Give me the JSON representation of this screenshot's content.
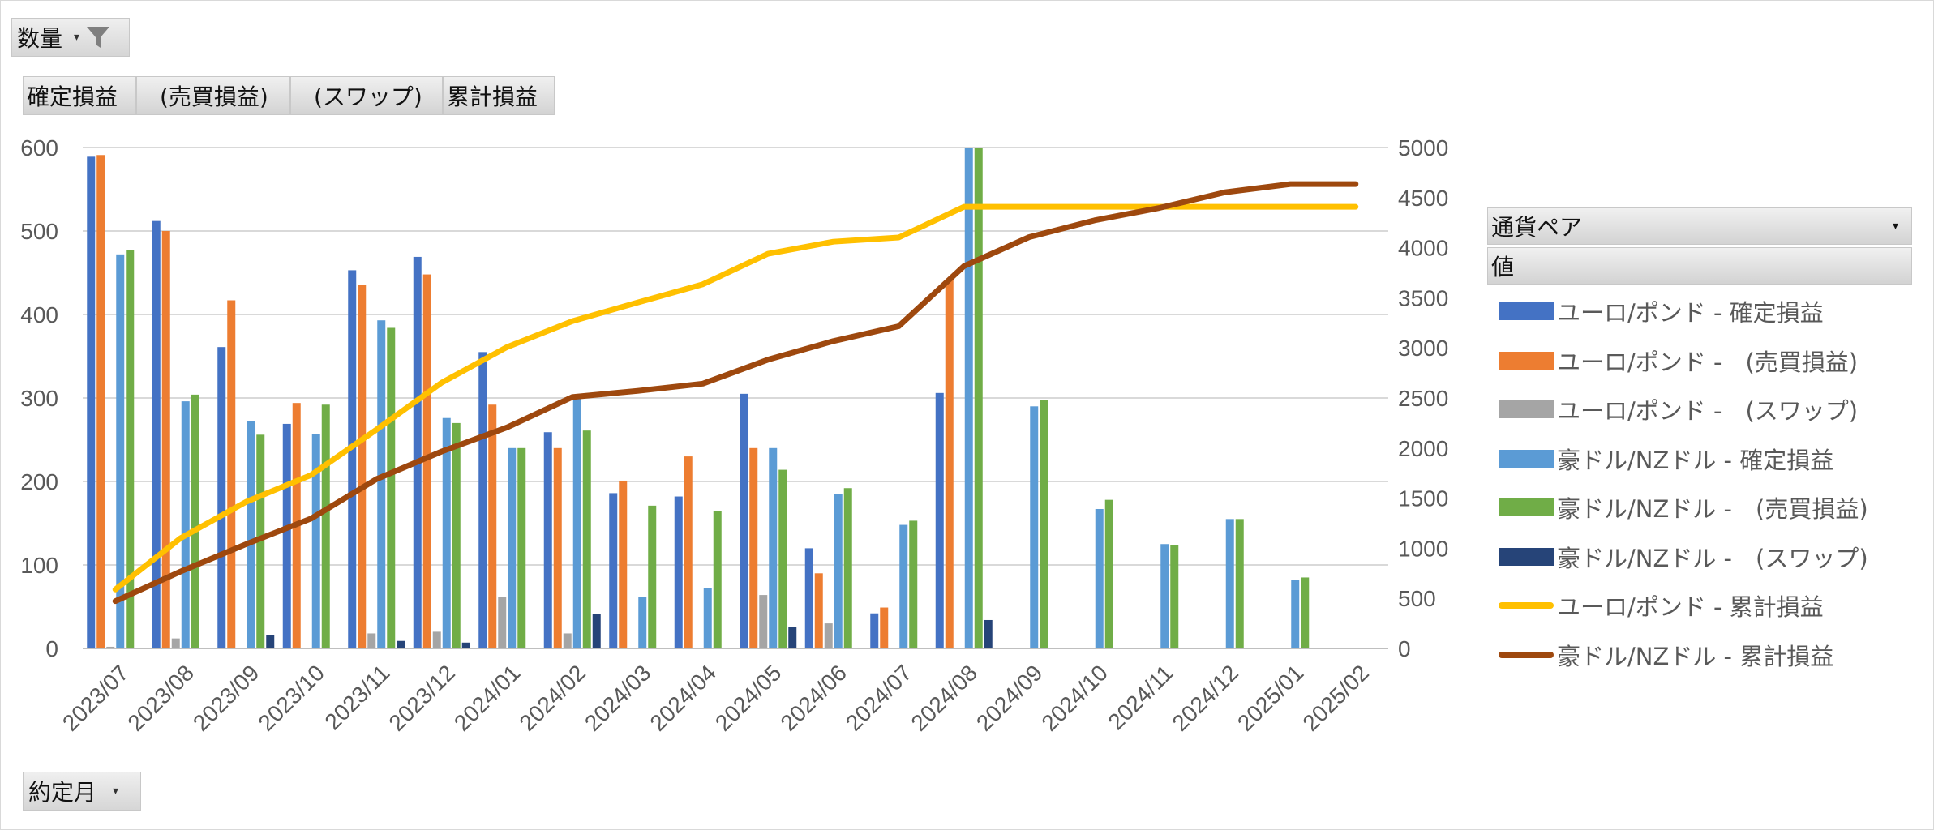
{
  "filters": {
    "value_field": "数量",
    "value_tabs": [
      "確定損益",
      "(売買損益)",
      "(スワップ)",
      "累計損益"
    ],
    "axis_field": "約定月",
    "legend_header": "通貨ペア",
    "legend_sub": "値"
  },
  "icons": {
    "filter": "funnel-icon",
    "dropdown": "chevron-down-icon"
  },
  "chart_data": {
    "type": "bar",
    "categories": [
      "2023/07",
      "2023/08",
      "2023/09",
      "2023/10",
      "2023/11",
      "2023/12",
      "2024/01",
      "2024/02",
      "2024/03",
      "2024/04",
      "2024/05",
      "2024/06",
      "2024/07",
      "2024/08",
      "2024/09",
      "2024/10",
      "2024/11",
      "2024/12",
      "2025/01",
      "2025/02"
    ],
    "y_left": {
      "ticks": [
        "0",
        "100",
        "200",
        "300",
        "400",
        "500",
        "600"
      ],
      "ylim": [
        0,
        600
      ]
    },
    "y_right": {
      "ticks": [
        "0",
        "500",
        "1000",
        "1500",
        "2000",
        "2500",
        "3000",
        "3500",
        "4000",
        "4500",
        "5000"
      ],
      "ylim": [
        0,
        5000
      ]
    },
    "grid": true,
    "legend_position": "right",
    "series": [
      {
        "name": "ユーロ/ポンド - 確定損益",
        "type": "bar",
        "axis": "left",
        "color": "#4472C4",
        "values": [
          589,
          512,
          361,
          269,
          453,
          469,
          355,
          259,
          186,
          182,
          305,
          120,
          42,
          306,
          null,
          null,
          null,
          null,
          null,
          null
        ]
      },
      {
        "name": "ユーロ/ポンド -　(売買損益)",
        "type": "bar",
        "axis": "left",
        "color": "#ED7D31",
        "values": [
          591,
          500,
          417,
          294,
          435,
          448,
          292,
          240,
          201,
          230,
          240,
          90,
          49,
          441,
          null,
          null,
          null,
          null,
          null,
          null
        ]
      },
      {
        "name": "ユーロ/ポンド -　(スワップ)",
        "type": "bar",
        "axis": "left",
        "color": "#A5A5A5",
        "values": [
          2,
          12,
          0,
          0,
          18,
          20,
          62,
          18,
          0,
          0,
          64,
          30,
          0,
          0,
          null,
          null,
          null,
          null,
          null,
          null
        ]
      },
      {
        "name": "豪ドル/NZドル - 確定損益",
        "type": "bar",
        "axis": "left",
        "color": "#5B9BD5",
        "values": [
          472,
          296,
          272,
          257,
          393,
          276,
          240,
          303,
          62,
          72,
          240,
          185,
          148,
          600,
          290,
          167,
          125,
          155,
          82,
          null
        ]
      },
      {
        "name": "豪ドル/NZドル -　(売買損益)",
        "type": "bar",
        "axis": "left",
        "color": "#70AD47",
        "values": [
          477,
          304,
          256,
          292,
          384,
          270,
          240,
          261,
          171,
          165,
          214,
          192,
          153,
          600,
          298,
          178,
          124,
          155,
          85,
          null
        ]
      },
      {
        "name": "豪ドル/NZドル -　(スワップ)",
        "type": "bar",
        "axis": "left",
        "color": "#264478",
        "values": [
          0,
          0,
          16,
          0,
          9,
          7,
          0,
          41,
          0,
          0,
          26,
          0,
          0,
          34,
          0,
          0,
          0,
          0,
          0,
          null
        ]
      },
      {
        "name": "ユーロ/ポンド - 累計損益",
        "type": "line",
        "axis": "right",
        "color": "#FFC000",
        "values": [
          589,
          1101,
          1462,
          1731,
          2184,
          2653,
          3008,
          3267,
          3453,
          3635,
          3940,
          4060,
          4102,
          4408,
          4408,
          4408,
          4408,
          4408,
          4408,
          4408
        ]
      },
      {
        "name": "豪ドル/NZドル - 累計損益",
        "type": "line",
        "axis": "right",
        "color": "#9E480E",
        "values": [
          472,
          768,
          1040,
          1297,
          1690,
          1966,
          2206,
          2509,
          2571,
          2643,
          2883,
          3068,
          3216,
          3816,
          4106,
          4273,
          4398,
          4553,
          4635,
          4635
        ]
      }
    ]
  }
}
